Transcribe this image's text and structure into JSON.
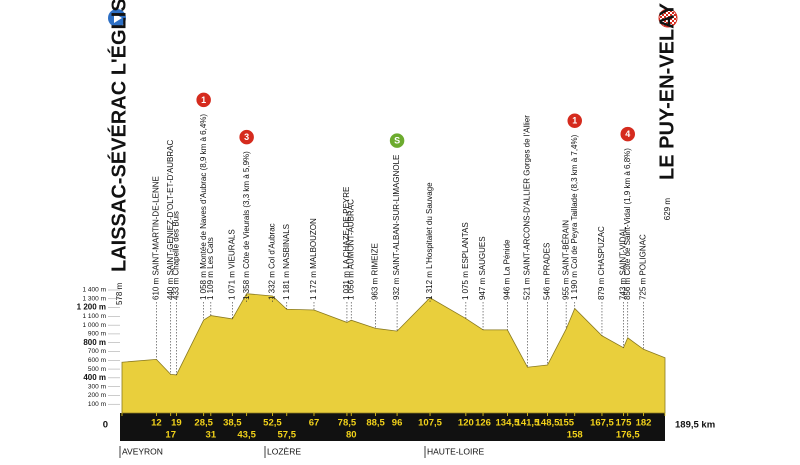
{
  "chart_data": {
    "type": "area",
    "start": {
      "name": "LAISSAC-SÉVÉRAC L'ÉGLISE",
      "altitude": "578 m"
    },
    "finish": {
      "name": "LE PUY-EN-VELAY",
      "altitude": "629 m"
    },
    "xlim": [
      0,
      189.5
    ],
    "ylim": [
      0,
      1400
    ],
    "xticks": [
      0,
      12,
      17,
      19,
      {
        "value": 28.5,
        "label": "28,5"
      },
      31,
      {
        "value": 38.5,
        "label": "38,5"
      },
      {
        "value": 43.5,
        "label": "43,5"
      },
      {
        "value": 52.5,
        "label": "52,5"
      },
      {
        "value": 57.5,
        "label": "57,5"
      },
      67,
      {
        "value": 78.5,
        "label": "78,5"
      },
      80,
      {
        "value": 88.5,
        "label": "88,5"
      },
      96,
      {
        "value": 107.5,
        "label": "107,5"
      },
      120,
      126,
      {
        "value": 134.5,
        "label": "134,5"
      },
      {
        "value": 141.5,
        "label": "141,5"
      },
      {
        "value": 148.5,
        "label": "148,5"
      },
      155,
      158,
      {
        "value": 167.5,
        "label": "167,5"
      },
      175,
      {
        "value": 176.5,
        "label": "176,5"
      },
      182,
      {
        "value": 189.5,
        "label": "189,5 km"
      }
    ],
    "yticks": [
      {
        "value": 100,
        "label": "100 m"
      },
      {
        "value": 200,
        "label": "200 m"
      },
      {
        "value": 300,
        "label": "300 m"
      },
      {
        "value": 400,
        "label": "400 m"
      },
      {
        "value": 500,
        "label": "500 m"
      },
      {
        "value": 600,
        "label": "600 m"
      },
      {
        "value": 700,
        "label": "700 m"
      },
      {
        "value": 800,
        "label": "800 m"
      },
      {
        "value": 900,
        "label": "900 m"
      },
      {
        "value": 1000,
        "label": "1 000 m"
      },
      {
        "value": 1100,
        "label": "1 100 m"
      },
      {
        "value": 1200,
        "label": "1 200 m"
      },
      {
        "value": 1300,
        "label": "1 300 m"
      },
      {
        "value": 1400,
        "label": "1 400 m"
      }
    ],
    "series": [
      {
        "color": "#e9cf3c",
        "x": [
          0,
          12,
          17,
          19,
          28.5,
          31,
          38.5,
          43.5,
          52.5,
          57.5,
          67,
          78.5,
          80,
          88.5,
          96,
          107.5,
          120,
          126,
          134.5,
          141.5,
          148.5,
          155,
          158,
          167.5,
          175,
          176.5,
          182,
          189.5
        ],
        "values": [
          578,
          610,
          440,
          433,
          1058,
          1109,
          1071,
          1358,
          1332,
          1181,
          1172,
          1031,
          1056,
          963,
          932,
          1312,
          1075,
          947,
          946,
          521,
          546,
          955,
          1190,
          879,
          743,
          856,
          725,
          629
        ]
      }
    ],
    "waypoints": [
      {
        "x": 12,
        "y": 610,
        "label": "610 m SAINT-MARTIN-DE-LENNE"
      },
      {
        "x": 17,
        "y": 440,
        "label": "440 m SAINT-GENIEZ-D'OLT-ET-D'AUBRAC"
      },
      {
        "x": 19,
        "y": 433,
        "label": "433 m Chapelle des Buis"
      },
      {
        "x": 28.5,
        "y": 1058,
        "label": "1 058 m Montée de Naves d'Aubrac (8,9 km à 6,4%)",
        "badge": "1",
        "badge_color": "#d52b1e"
      },
      {
        "x": 31,
        "y": 1109,
        "label": "1 109 m Les Cats"
      },
      {
        "x": 38.5,
        "y": 1071,
        "label": "1 071 m VIEURALS"
      },
      {
        "x": 43.5,
        "y": 1358,
        "label": "1 358 m Côte de Vieurals (3,3 km à 5,9%)",
        "badge": "3",
        "badge_color": "#d52b1e"
      },
      {
        "x": 52.5,
        "y": 1332,
        "label": "1 332 m Col d'Aubrac"
      },
      {
        "x": 57.5,
        "y": 1181,
        "label": "1 181 m NASBINALS"
      },
      {
        "x": 67,
        "y": 1172,
        "label": "1 172 m MALBOUZON"
      },
      {
        "x": 78.5,
        "y": 1031,
        "label": "1 031 m LA CHAZE-DE-PEYRE"
      },
      {
        "x": 80,
        "y": 1056,
        "label": "1 056 m AUMONT-AUBRAC"
      },
      {
        "x": 88.5,
        "y": 963,
        "label": "963 m RIMEIZE"
      },
      {
        "x": 96,
        "y": 932,
        "label": "932 m SAINT-ALBAN-SUR-LIMAGNOLE",
        "badge": "S",
        "badge_color": "#6cab2e"
      },
      {
        "x": 107.5,
        "y": 1312,
        "label": "1 312 m L'Hospitalet du Sauvage"
      },
      {
        "x": 120,
        "y": 1075,
        "label": "1 075 m ESPLANTAS"
      },
      {
        "x": 126,
        "y": 947,
        "label": "947 m SAUGUES"
      },
      {
        "x": 134.5,
        "y": 946,
        "label": "946 m La Pénide"
      },
      {
        "x": 141.5,
        "y": 521,
        "label": "521 m SAINT-ARCONS-D'ALLIER Gorges de l'Allier"
      },
      {
        "x": 148.5,
        "y": 546,
        "label": "546 m PRADES"
      },
      {
        "x": 155,
        "y": 955,
        "label": "955 m SAINT-BÉRAIN"
      },
      {
        "x": 158,
        "y": 1190,
        "label": "1 190 m Col de Peyra Taillade (8,3 km à 7,4%)",
        "badge": "1",
        "badge_color": "#d52b1e"
      },
      {
        "x": 167.5,
        "y": 879,
        "label": "879 m CHASPUZAC"
      },
      {
        "x": 175,
        "y": 743,
        "label": "743 m SAINT-VIDAL"
      },
      {
        "x": 176.5,
        "y": 856,
        "label": "856 m Côte de Saint-Vidal (1,9 km à 6,8%)",
        "badge": "4",
        "badge_color": "#d52b1e"
      },
      {
        "x": 182,
        "y": 725,
        "label": "725 m POLIGNAC"
      }
    ],
    "regions": [
      "AVEYRON",
      "LOZÈRE",
      "HAUTE-LOIRE"
    ]
  }
}
